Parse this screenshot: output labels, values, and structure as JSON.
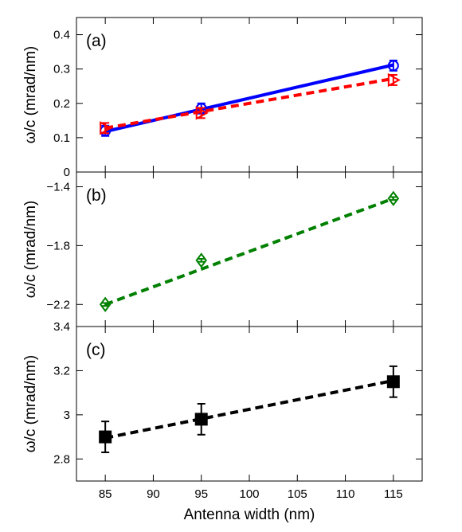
{
  "figure": {
    "xlabel": "Antenna width (nm)",
    "ylabel": "ω/c (mrad/nm)"
  },
  "chart_data": [
    {
      "type": "line",
      "panel_label": "(a)",
      "x": [
        85,
        95,
        115
      ],
      "xlim": [
        82,
        118
      ],
      "xticks": [
        85,
        90,
        95,
        100,
        105,
        110,
        115
      ],
      "ylim": [
        0,
        0.45
      ],
      "yticks": [
        0,
        0.1,
        0.2,
        0.3,
        0.4
      ],
      "ytick_labels": [
        "0",
        "0.1",
        "0.2",
        "0.3",
        "0.4"
      ],
      "series": [
        {
          "values": [
            0.12,
            0.185,
            0.31
          ],
          "errors": [
            0.015,
            0.015,
            0.015
          ],
          "marker": "circle",
          "line_style": "solid",
          "color": "#0000ff",
          "fit": [
            0.118,
            0.312
          ]
        },
        {
          "values": [
            0.128,
            0.172,
            0.268
          ],
          "errors": [
            0.015,
            0.015,
            0.015
          ],
          "marker": "triangle-right",
          "line_style": "dashed",
          "color": "#ff0000",
          "fit": [
            0.128,
            0.272
          ]
        }
      ]
    },
    {
      "type": "line",
      "panel_label": "(b)",
      "x": [
        85,
        95,
        115
      ],
      "xlim": [
        82,
        118
      ],
      "ylim": [
        -2.35,
        -1.3
      ],
      "yticks": [
        -2.2,
        -1.8,
        -1.4
      ],
      "ytick_labels": [
        "−2.2",
        "−1.8",
        "−1.4"
      ],
      "series": [
        {
          "values": [
            -2.2,
            -1.9,
            -1.48
          ],
          "errors": [
            0.01,
            0.01,
            0.01
          ],
          "marker": "diamond",
          "line_style": "dashed",
          "color": "#008000",
          "fit": [
            -2.2,
            -1.48
          ]
        }
      ]
    },
    {
      "type": "line",
      "panel_label": "(c)",
      "x": [
        85,
        95,
        115
      ],
      "xlim": [
        82,
        118
      ],
      "ylim": [
        2.7,
        3.4
      ],
      "yticks": [
        2.8,
        3.0,
        3.2,
        3.4
      ],
      "ytick_labels": [
        "2.8",
        "3",
        "3.2",
        "3.4"
      ],
      "series": [
        {
          "values": [
            2.9,
            2.98,
            3.15
          ],
          "errors": [
            0.07,
            0.07,
            0.07
          ],
          "marker": "square",
          "line_style": "dashed",
          "color": "#000000",
          "fit": [
            2.895,
            3.155
          ]
        }
      ]
    }
  ]
}
